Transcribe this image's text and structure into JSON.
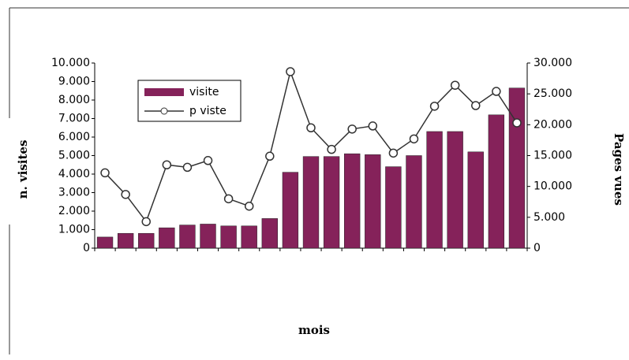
{
  "chart_data": {
    "type": "bar-line",
    "x_label": "mois",
    "y_label": "n. visites",
    "y2_label": "Pages vues",
    "categories": [
      null,
      null,
      null,
      null,
      null,
      null,
      null,
      null,
      null,
      null,
      null,
      null,
      null,
      null,
      null,
      null,
      null,
      null,
      null,
      null,
      null
    ],
    "series": [
      {
        "name": "visite",
        "type": "bar",
        "color": "#85225a",
        "values": [
          600,
          800,
          800,
          1100,
          1250,
          1300,
          1200,
          1200,
          1600,
          4100,
          4950,
          4950,
          5100,
          5050,
          4400,
          5000,
          6300,
          6300,
          5200,
          7200,
          8650
        ]
      },
      {
        "name": "p viste",
        "type": "line",
        "axis": "y2",
        "color": "#333333",
        "values": [
          12200,
          8700,
          4300,
          13500,
          13100,
          14200,
          8000,
          6800,
          14900,
          28600,
          19500,
          16000,
          19300,
          19800,
          15400,
          17700,
          23000,
          26400,
          23100,
          25400,
          20300
        ]
      }
    ],
    "ylim": [
      0,
      10000
    ],
    "yticks": [
      0,
      {
        "value": 1000,
        "label": "1.000"
      },
      {
        "value": 2000,
        "label": "2.000"
      },
      {
        "value": 3000,
        "label": "3.000"
      },
      {
        "value": 4000,
        "label": "4.000"
      },
      {
        "value": 5000,
        "label": "5.000"
      },
      {
        "value": 6000,
        "label": "6.000"
      },
      {
        "value": 7000,
        "label": "7.000"
      },
      {
        "value": 8000,
        "label": "8.000"
      },
      {
        "value": 9000,
        "label": "9.000"
      },
      {
        "value": 10000,
        "label": "10.000"
      }
    ],
    "y2lim": [
      0,
      30000
    ],
    "y2ticks": [
      0,
      {
        "value": 5000,
        "label": "5.000"
      },
      {
        "value": 10000,
        "label": "10.000"
      },
      {
        "value": 15000,
        "label": "15.000"
      },
      {
        "value": 20000,
        "label": "20.000"
      },
      {
        "value": 25000,
        "label": "25.000"
      },
      {
        "value": 30000,
        "label": "30.000"
      }
    ]
  }
}
